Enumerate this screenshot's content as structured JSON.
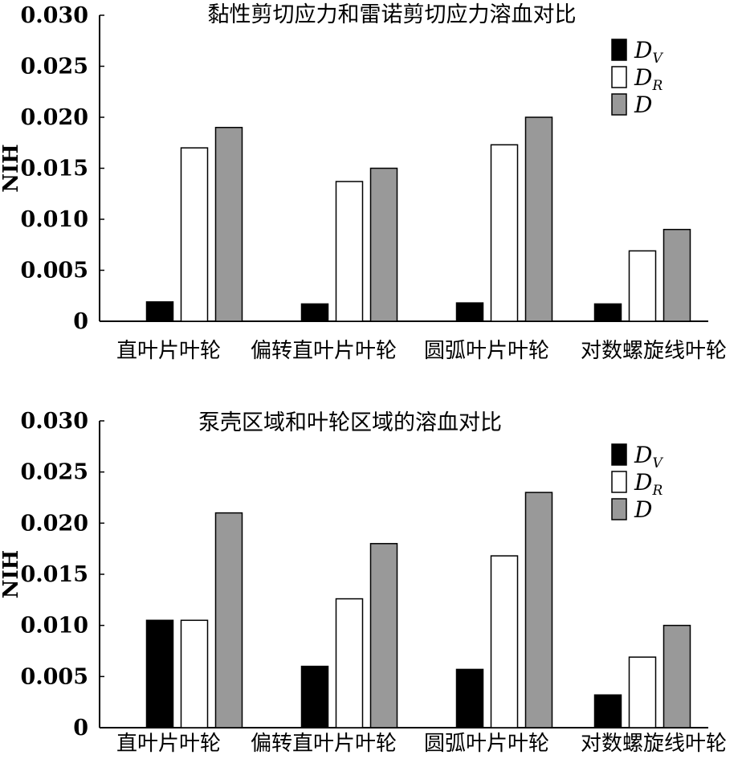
{
  "colors": {
    "DV": "#000000",
    "DR": "#ffffff",
    "D": "#999999"
  },
  "chart_data": [
    {
      "type": "bar",
      "title": "黏性剪切应力和雷诺剪切应力溶血对比",
      "ylabel": "NIH",
      "xlabel": "",
      "ylim": [
        0,
        0.03
      ],
      "yticks": [
        "0",
        "0.005",
        "0.010",
        "0.015",
        "0.020",
        "0.025",
        "0.030"
      ],
      "categories": [
        "直叶片叶轮",
        "偏转直叶片叶轮",
        "圆弧叶片叶轮",
        "对数螺旋线叶轮"
      ],
      "legend_position": "top-right",
      "series": [
        {
          "name": "D",
          "sub": "V",
          "color": "#000000",
          "values": [
            0.0019,
            0.0017,
            0.0018,
            0.0017
          ]
        },
        {
          "name": "D",
          "sub": "R",
          "color": "#ffffff",
          "values": [
            0.017,
            0.0137,
            0.0173,
            0.0069
          ]
        },
        {
          "name": "D",
          "sub": "",
          "color": "#999999",
          "values": [
            0.019,
            0.015,
            0.02,
            0.009
          ]
        }
      ]
    },
    {
      "type": "bar",
      "title": "泵壳区域和叶轮区域的溶血对比",
      "ylabel": "NIH",
      "xlabel": "",
      "ylim": [
        0,
        0.03
      ],
      "yticks": [
        "0",
        "0.005",
        "0.010",
        "0.015",
        "0.020",
        "0.025",
        "0.030"
      ],
      "categories": [
        "直叶片叶轮",
        "偏转直叶片叶轮",
        "圆弧叶片叶轮",
        "对数螺旋线叶轮"
      ],
      "legend_position": "top-right",
      "series": [
        {
          "name": "D",
          "sub": "V",
          "color": "#000000",
          "values": [
            0.0105,
            0.006,
            0.0057,
            0.0032
          ]
        },
        {
          "name": "D",
          "sub": "R",
          "color": "#ffffff",
          "values": [
            0.0105,
            0.0126,
            0.0168,
            0.0069
          ]
        },
        {
          "name": "D",
          "sub": "",
          "color": "#999999",
          "values": [
            0.021,
            0.018,
            0.023,
            0.01
          ]
        }
      ]
    }
  ]
}
